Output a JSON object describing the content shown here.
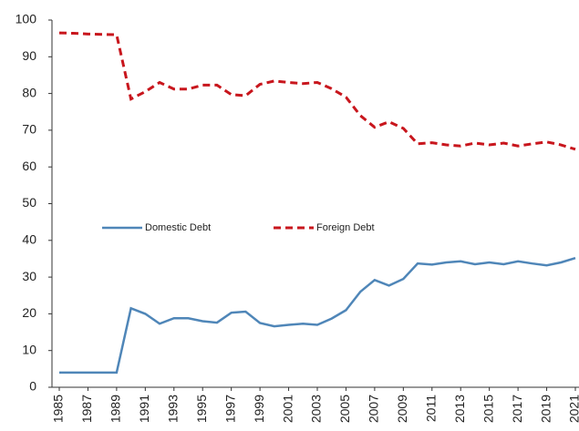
{
  "chart_data": {
    "type": "line",
    "x": [
      1985,
      1986,
      1987,
      1988,
      1989,
      1990,
      1991,
      1992,
      1993,
      1994,
      1995,
      1996,
      1997,
      1998,
      1999,
      2000,
      2001,
      2002,
      2003,
      2004,
      2005,
      2006,
      2007,
      2008,
      2009,
      2010,
      2011,
      2012,
      2013,
      2014,
      2015,
      2016,
      2017,
      2018,
      2019,
      2020,
      2021
    ],
    "series": [
      {
        "name": "Domestic Debt",
        "color": "#4f86b8",
        "dash": false,
        "values": [
          4,
          4,
          4,
          4,
          4,
          21.5,
          20,
          17.3,
          18.8,
          18.8,
          18,
          17.6,
          20.3,
          20.6,
          17.5,
          16.6,
          17,
          17.3,
          17,
          18.7,
          21,
          26,
          29.2,
          27.7,
          29.5,
          33.7,
          33.4,
          34,
          34.3,
          33.5,
          34,
          33.5,
          34.3,
          33.7,
          33.2,
          34,
          35.2
        ]
      },
      {
        "name": "Foreign Debt",
        "color": "#c8161d",
        "dash": true,
        "values": [
          96.5,
          96.4,
          96.2,
          96.1,
          96,
          78.5,
          80.5,
          83,
          81.2,
          81.2,
          82.3,
          82.3,
          79.7,
          79.4,
          82.5,
          83.4,
          83,
          82.7,
          83,
          81.3,
          79,
          74,
          70.8,
          72.3,
          70.5,
          66.3,
          66.6,
          66,
          65.7,
          66.5,
          66,
          66.5,
          65.7,
          66.3,
          66.8,
          66,
          64.8
        ]
      }
    ],
    "xlim": [
      1985,
      2021
    ],
    "xticks": [
      1985,
      1987,
      1989,
      1991,
      1993,
      1995,
      1997,
      1999,
      2001,
      2003,
      2005,
      2007,
      2009,
      2011,
      2013,
      2015,
      2017,
      2019,
      2021
    ],
    "ylim": [
      0,
      100
    ],
    "yticks": [
      0,
      10,
      20,
      30,
      40,
      50,
      60,
      70,
      80,
      90,
      100
    ],
    "legend": "center"
  }
}
